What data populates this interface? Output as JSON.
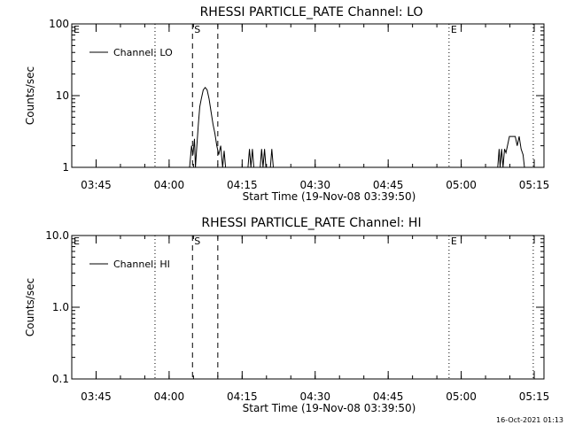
{
  "chart_data": [
    {
      "type": "line",
      "title": "RHESSI PARTICLE_RATE Channel: LO",
      "xlabel": "Start Time (19-Nov-08 03:39:50)",
      "ylabel": "Counts/sec",
      "yscale": "log",
      "ylim": [
        1,
        100
      ],
      "yticks": [
        1,
        10,
        100
      ],
      "ytick_labels": [
        "1",
        "10",
        "100"
      ],
      "xlim_min": [
        0,
        97
      ],
      "xticks_min": [
        5,
        20,
        35,
        50,
        65,
        80,
        95
      ],
      "xtick_labels": [
        "03:45",
        "04:00",
        "04:15",
        "04:30",
        "04:45",
        "05:00",
        "05:15"
      ],
      "legend": [
        "Channel: LO"
      ],
      "legend_position": "top-left",
      "markers": [
        {
          "label": "E",
          "min": 0,
          "style": "dotted"
        },
        {
          "label": "",
          "min": 17.1,
          "style": "dotted"
        },
        {
          "label": "S",
          "min": 24.8,
          "style": "dashed"
        },
        {
          "label": "",
          "min": 30.0,
          "style": "dashed"
        },
        {
          "label": "E",
          "min": 77.5,
          "style": "dotted"
        },
        {
          "label": "",
          "min": 94.8,
          "style": "dotted"
        }
      ],
      "series": [
        {
          "name": "Channel: LO",
          "points": [
            [
              24.2,
              1
            ],
            [
              24.6,
              2
            ],
            [
              24.9,
              1.5
            ],
            [
              25.2,
              2.5
            ],
            [
              25.4,
              1
            ],
            [
              25.7,
              2
            ],
            [
              26.0,
              4
            ],
            [
              26.3,
              7
            ],
            [
              26.6,
              9
            ],
            [
              27.0,
              12
            ],
            [
              27.4,
              13
            ],
            [
              27.8,
              12
            ],
            [
              28.2,
              9
            ],
            [
              28.6,
              6
            ],
            [
              29.0,
              4
            ],
            [
              29.4,
              3
            ],
            [
              29.8,
              2
            ],
            [
              30.2,
              1.5
            ],
            [
              30.6,
              2
            ],
            [
              31.0,
              1
            ],
            [
              31.3,
              1.7
            ],
            [
              31.6,
              1
            ],
            [
              36.2,
              1
            ],
            [
              36.5,
              1.8
            ],
            [
              36.8,
              1
            ],
            [
              37.1,
              1.8
            ],
            [
              37.4,
              1
            ],
            [
              38.7,
              1
            ],
            [
              39.0,
              1.8
            ],
            [
              39.3,
              1
            ],
            [
              39.6,
              1.8
            ],
            [
              39.9,
              1
            ],
            [
              40.8,
              1
            ],
            [
              41.1,
              1.8
            ],
            [
              41.4,
              1
            ],
            [
              87.5,
              1
            ],
            [
              87.8,
              1.8
            ],
            [
              88.0,
              1
            ],
            [
              88.3,
              1.8
            ],
            [
              88.6,
              1
            ],
            [
              88.9,
              1.8
            ],
            [
              89.2,
              1.6
            ],
            [
              89.5,
              2
            ],
            [
              89.9,
              2.7
            ],
            [
              90.3,
              2.7
            ],
            [
              90.7,
              2.7
            ],
            [
              91.1,
              2.7
            ],
            [
              91.5,
              2
            ],
            [
              91.9,
              2.7
            ],
            [
              92.3,
              1.8
            ],
            [
              92.7,
              1.5
            ],
            [
              93.0,
              1
            ]
          ]
        }
      ]
    },
    {
      "type": "line",
      "title": "RHESSI PARTICLE_RATE Channel: HI",
      "xlabel": "Start Time (19-Nov-08 03:39:50)",
      "ylabel": "Counts/sec",
      "yscale": "log",
      "ylim": [
        0.1,
        10
      ],
      "yticks": [
        0.1,
        1,
        10
      ],
      "ytick_labels": [
        "0.1",
        "1.0",
        "10.0"
      ],
      "xlim_min": [
        0,
        97
      ],
      "xticks_min": [
        5,
        20,
        35,
        50,
        65,
        80,
        95
      ],
      "xtick_labels": [
        "03:45",
        "04:00",
        "04:15",
        "04:30",
        "04:45",
        "05:00",
        "05:15"
      ],
      "legend": [
        "Channel: HI"
      ],
      "legend_position": "top-left",
      "markers": [
        {
          "label": "E",
          "min": 0,
          "style": "dotted"
        },
        {
          "label": "",
          "min": 17.1,
          "style": "dotted"
        },
        {
          "label": "S",
          "min": 24.8,
          "style": "dashed"
        },
        {
          "label": "",
          "min": 30.0,
          "style": "dashed"
        },
        {
          "label": "E",
          "min": 77.5,
          "style": "dotted"
        },
        {
          "label": "",
          "min": 94.8,
          "style": "dotted"
        }
      ],
      "series": [
        {
          "name": "Channel: HI",
          "points": []
        }
      ]
    }
  ],
  "footer": {
    "timestamp": "16-Oct-2021 01:13"
  },
  "colors": {
    "line": "#000000",
    "background": "#ffffff"
  }
}
